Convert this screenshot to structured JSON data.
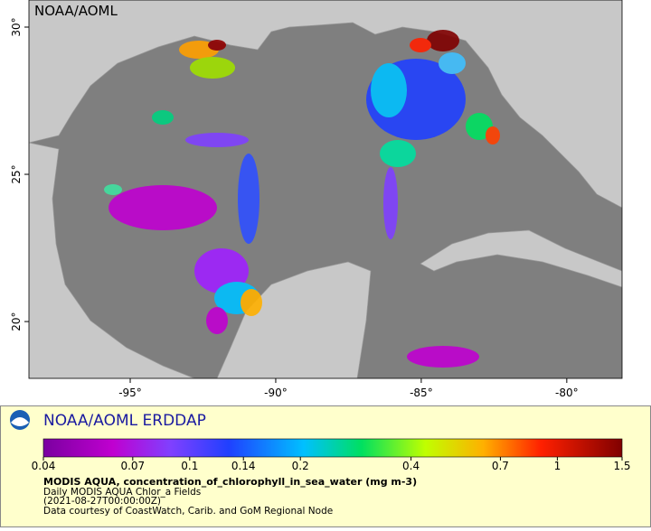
{
  "map": {
    "watermark": "NOAA/AOML",
    "xlim": [
      -98.48,
      -78.1
    ],
    "ylim": [
      18.07,
      30.92
    ],
    "xticks": [
      {
        "value": -95,
        "label": "-95°"
      },
      {
        "value": -90,
        "label": "-90°"
      },
      {
        "value": -85,
        "label": "-85°"
      },
      {
        "value": -80,
        "label": "-80°"
      }
    ],
    "yticks": [
      {
        "value": 20,
        "label": "20°"
      },
      {
        "value": 25,
        "label": "25°"
      },
      {
        "value": 30,
        "label": "30°"
      }
    ]
  },
  "legend": {
    "brand": "NOAA/AOML ERDDAP",
    "title": "MODIS AQUA, concentration_of_chlorophyll_in_sea_water (mg m-3)",
    "lines": [
      "Daily MODIS AQUA Chlor_a Fields",
      "(2021-08-27T00:00:00Z)",
      "Data courtesy of CoastWatch, Carib. and GoM Regional Node"
    ],
    "scale": "log",
    "range": [
      0.04,
      1.5
    ],
    "ticks": [
      0.04,
      0.07,
      0.1,
      0.14,
      0.2,
      0.4,
      0.7,
      1,
      1.5
    ]
  }
}
